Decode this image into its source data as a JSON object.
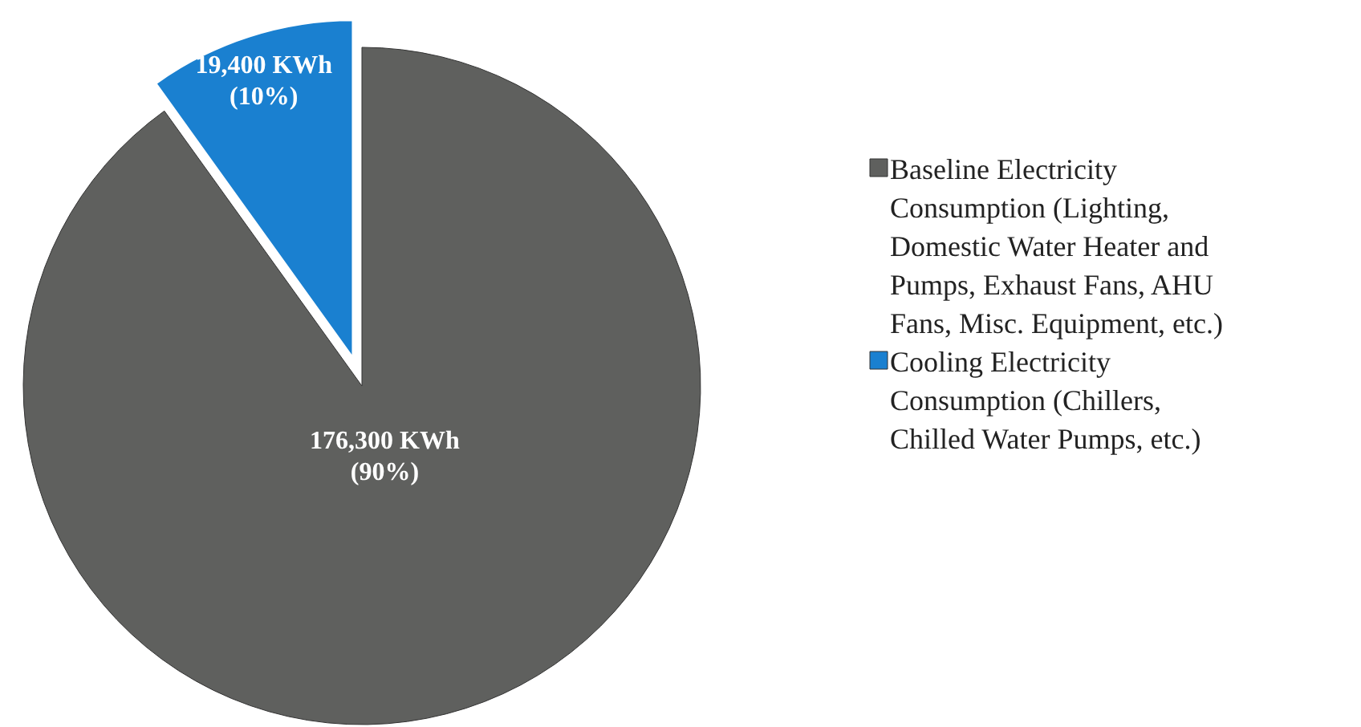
{
  "chart_data": {
    "type": "pie",
    "categories": [
      "Baseline Electricity Consumption (Lighting, Domestic Water Heater and Pumps, Exhaust Fans, AHU Fans, Misc. Equipment, etc.)",
      "Cooling Electricity Consumption (Chillers, Chilled Water Pumps, etc.)"
    ],
    "values": [
      176300,
      19400
    ],
    "colors": [
      "#5f605e",
      "#1a80d0"
    ],
    "value_labels": [
      "176,300 KWh\n(90%)",
      "19,400 KWh\n(10%)"
    ],
    "legend": "right"
  }
}
